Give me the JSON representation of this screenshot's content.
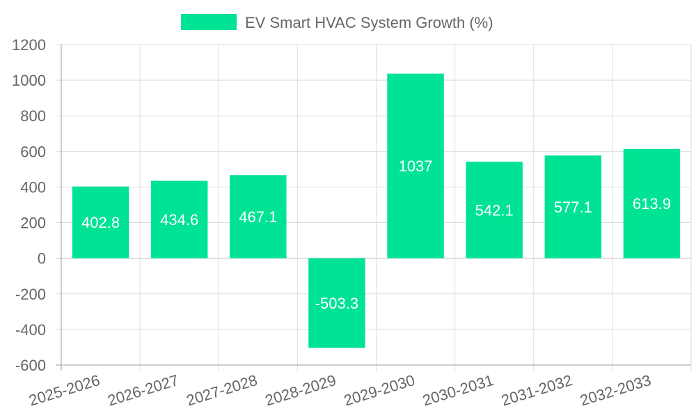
{
  "chart_data": {
    "type": "bar",
    "categories": [
      "2025-2026",
      "2026-2027",
      "2027-2028",
      "2028-2029",
      "2029-2030",
      "2030-2031",
      "2031-2032",
      "2032-2033"
    ],
    "series": [
      {
        "name": "EV Smart HVAC System Growth (%)",
        "values": [
          402.8,
          434.6,
          467.1,
          -503.3,
          1037,
          542.1,
          577.1,
          613.9
        ],
        "color": "#00e394"
      }
    ],
    "data_labels": [
      "402.8",
      "434.6",
      "467.1",
      "-503.3",
      "1037",
      "542.1",
      "577.1",
      "613.9"
    ],
    "y_ticks": [
      "1200",
      "1000",
      "800",
      "600",
      "400",
      "200",
      "0",
      "-200",
      "-400",
      "-600"
    ],
    "ylim": [
      -600,
      1200
    ],
    "grid": true,
    "legend_position": "top"
  },
  "colors": {
    "bar": "#00e394",
    "grid": "#dddddd",
    "axis": "#bbbbbb",
    "text": "#666666"
  }
}
